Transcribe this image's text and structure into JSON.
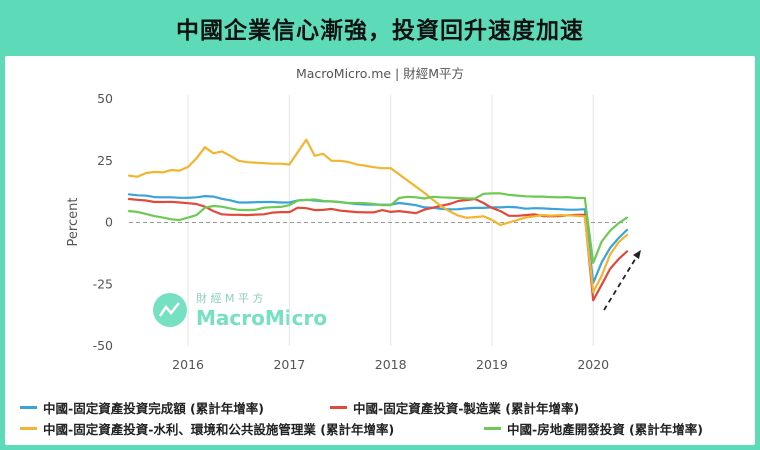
{
  "banner": {
    "title": "中國企業信心漸強，投資回升速度加速"
  },
  "source": "MacroMicro.me | 財經M平方",
  "watermark": {
    "cn": "財 經 M 平 方",
    "en": "MacroMicro"
  },
  "colors": {
    "background": "#5ddbb8",
    "blue": "#3aa3d8",
    "red": "#e04a3a",
    "orange": "#f2b530",
    "green": "#6cc952",
    "arrow": "#222222"
  },
  "chart_data": {
    "type": "line",
    "title": "",
    "xlabel": "",
    "ylabel": "Percent",
    "ylim": [
      -50,
      50
    ],
    "yticks": [
      50,
      25,
      0,
      -25,
      -50
    ],
    "xlim": [
      "2015-06",
      "2020-05"
    ],
    "xticks": [
      "2016",
      "2017",
      "2018",
      "2019",
      "2020"
    ],
    "grid": "vertical",
    "zero_line": "dashed",
    "annotations": [
      "dashed arrow pointing up-right after 2020"
    ],
    "x": [
      "2015-06",
      "2015-07",
      "2015-08",
      "2015-09",
      "2015-10",
      "2015-11",
      "2015-12",
      "2016-01",
      "2016-02",
      "2016-03",
      "2016-04",
      "2016-05",
      "2016-06",
      "2016-07",
      "2016-08",
      "2016-09",
      "2016-10",
      "2016-11",
      "2016-12",
      "2017-01",
      "2017-02",
      "2017-03",
      "2017-04",
      "2017-05",
      "2017-06",
      "2017-07",
      "2017-08",
      "2017-09",
      "2017-10",
      "2017-11",
      "2017-12",
      "2018-01",
      "2018-02",
      "2018-03",
      "2018-04",
      "2018-05",
      "2018-06",
      "2018-07",
      "2018-08",
      "2018-09",
      "2018-10",
      "2018-11",
      "2018-12",
      "2019-01",
      "2019-02",
      "2019-03",
      "2019-04",
      "2019-05",
      "2019-06",
      "2019-07",
      "2019-08",
      "2019-09",
      "2019-10",
      "2019-11",
      "2019-12",
      "2020-01",
      "2020-02",
      "2020-03",
      "2020-04",
      "2020-05"
    ],
    "series": [
      {
        "name": "中國-固定資產投資完成額 (累計年增率)",
        "color": "#3aa3d8",
        "values": [
          11.4,
          11.0,
          10.9,
          10.3,
          10.2,
          10.2,
          10.0,
          10.0,
          10.2,
          10.7,
          10.5,
          9.6,
          9.0,
          8.1,
          8.1,
          8.2,
          8.3,
          8.3,
          8.1,
          8.1,
          8.9,
          9.2,
          8.9,
          8.6,
          8.6,
          8.3,
          7.8,
          7.5,
          7.3,
          7.2,
          7.2,
          7.2,
          7.9,
          7.5,
          7.0,
          6.1,
          6.0,
          5.5,
          5.3,
          5.4,
          5.7,
          5.9,
          5.9,
          6.1,
          6.1,
          6.3,
          6.1,
          5.6,
          5.8,
          5.7,
          5.5,
          5.4,
          5.2,
          5.2,
          5.4,
          -24.5,
          -16.1,
          -10.3,
          -6.3,
          -3.0
        ]
      },
      {
        "name": "中國-固定資產投資-製造業 (累計年增率)",
        "color": "#e04a3a",
        "values": [
          9.5,
          9.2,
          8.9,
          8.3,
          8.3,
          8.4,
          8.1,
          7.8,
          7.5,
          6.4,
          4.6,
          3.3,
          3.1,
          3.1,
          3.0,
          3.2,
          3.3,
          4.0,
          4.2,
          4.2,
          6.0,
          5.8,
          5.0,
          5.1,
          5.5,
          4.8,
          4.5,
          4.2,
          4.1,
          4.1,
          5.0,
          4.3,
          4.6,
          4.2,
          3.8,
          5.2,
          6.0,
          6.8,
          7.5,
          8.7,
          9.1,
          9.5,
          7.9,
          5.9,
          4.6,
          2.7,
          2.7,
          3.0,
          3.3,
          2.6,
          2.5,
          2.6,
          2.9,
          3.1,
          3.1,
          -31.5,
          -25.2,
          -18.8,
          -14.8,
          -11.7
        ]
      },
      {
        "name": "中國-固定資產投資-水利、環境和公共設施管理業 (累計年增率)",
        "color": "#f2b530",
        "values": [
          19.0,
          18.5,
          20.0,
          20.5,
          20.3,
          21.2,
          21.0,
          22.5,
          26.0,
          30.5,
          28.0,
          28.8,
          27.0,
          25.0,
          24.4,
          24.2,
          24.0,
          23.8,
          23.8,
          23.5,
          28.5,
          33.5,
          27.0,
          27.8,
          25.0,
          25.0,
          24.5,
          23.5,
          23.0,
          22.4,
          22.0,
          22.0,
          19.5,
          17.0,
          14.5,
          12.0,
          9.2,
          6.6,
          4.5,
          2.8,
          1.9,
          2.2,
          2.5,
          1.0,
          -1.0,
          0.0,
          1.0,
          2.0,
          2.5,
          3.0,
          2.8,
          3.0,
          2.9,
          2.7,
          2.5,
          -28.2,
          -21.5,
          -13.0,
          -8.0,
          -5.0
        ]
      },
      {
        "name": "中國-房地產開發投資 (累計年增率)",
        "color": "#6cc952",
        "values": [
          4.6,
          4.3,
          3.5,
          2.6,
          2.0,
          1.3,
          1.0,
          2.0,
          3.0,
          6.0,
          6.7,
          6.4,
          5.7,
          5.1,
          5.0,
          5.2,
          6.0,
          6.2,
          6.3,
          7.0,
          8.9,
          9.1,
          9.3,
          8.8,
          8.5,
          8.2,
          7.9,
          7.9,
          7.8,
          7.5,
          7.0,
          7.0,
          9.9,
          10.4,
          10.2,
          9.7,
          10.4,
          10.2,
          10.1,
          9.9,
          9.7,
          9.7,
          11.6,
          11.8,
          11.8,
          11.2,
          10.9,
          10.6,
          10.5,
          10.5,
          10.3,
          10.2,
          10.3,
          9.9,
          9.9,
          -16.3,
          -7.7,
          -3.3,
          -0.3,
          2.0
        ]
      }
    ]
  }
}
